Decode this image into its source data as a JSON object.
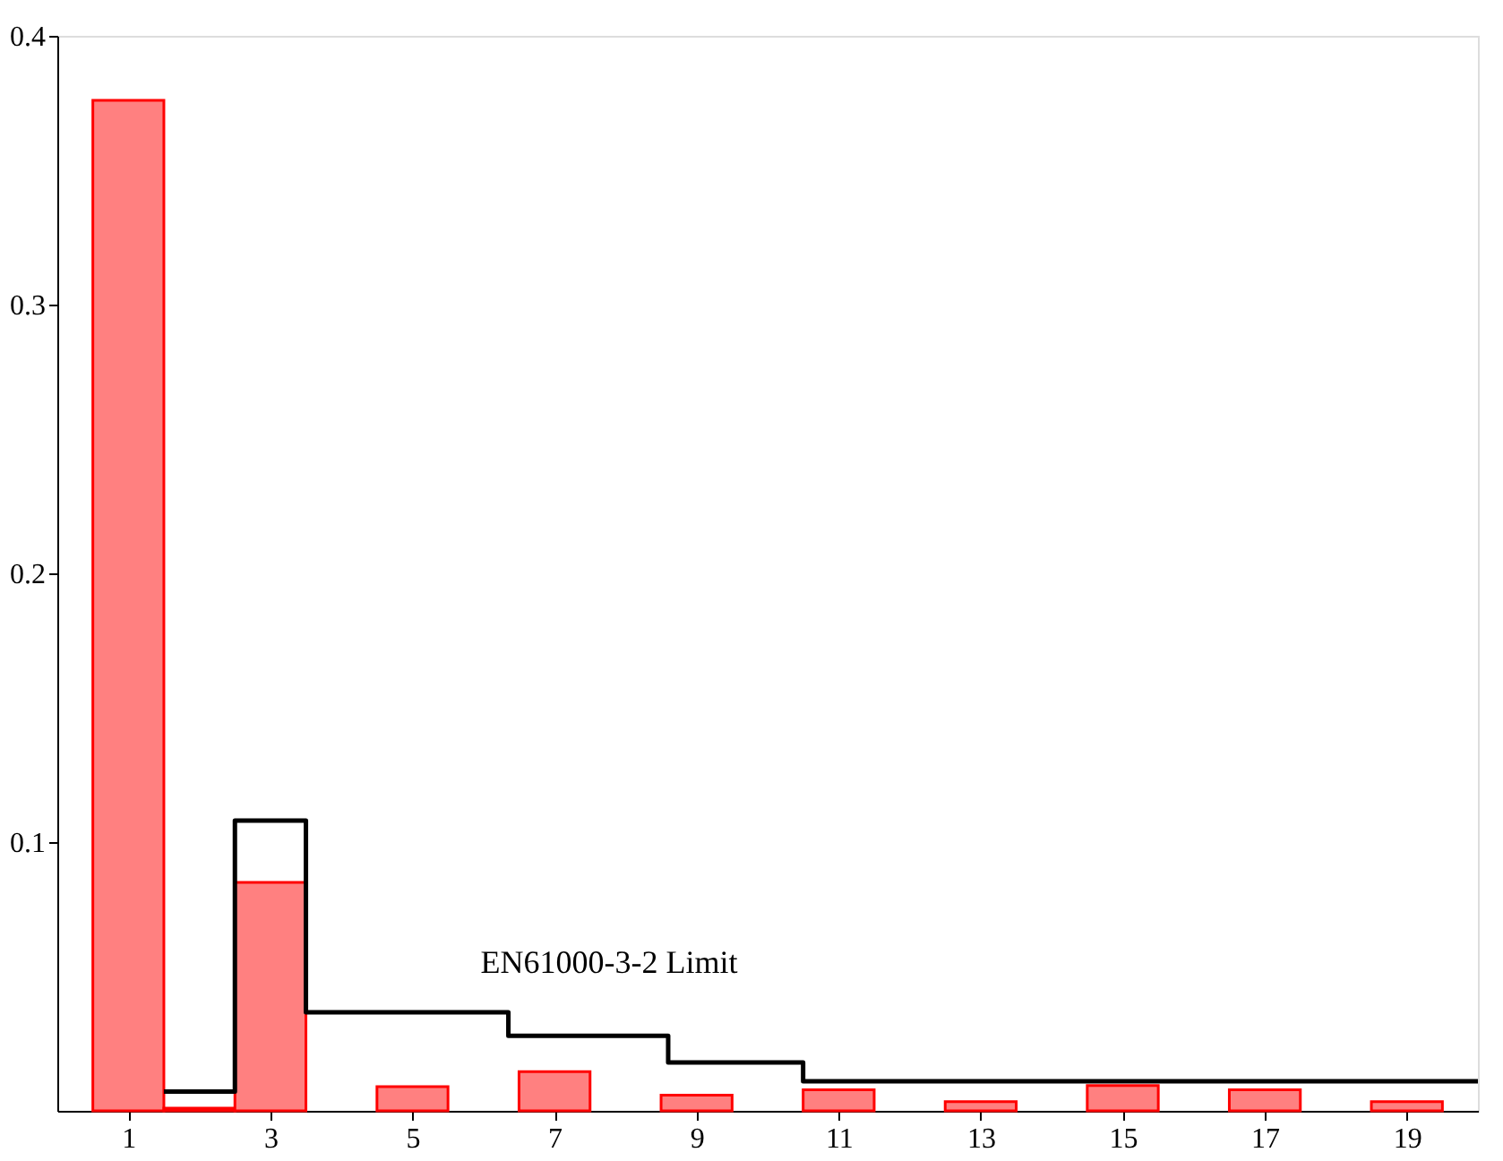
{
  "chart_data": {
    "type": "bar",
    "x": [
      1,
      2,
      3,
      4,
      5,
      6,
      7,
      8,
      9,
      10,
      11,
      12,
      13,
      14,
      15,
      16,
      17,
      18,
      19
    ],
    "series": [
      {
        "color": "#ff8080",
        "values": [
          0.376,
          0.001,
          0.085,
          null,
          0.009,
          null,
          0.0146,
          null,
          0.0058,
          null,
          0.0078,
          null,
          0.0034,
          null,
          0.0094,
          null,
          0.0078,
          null,
          0.0034
        ]
      },
      {
        "type": "step",
        "color": "#000000",
        "x": [
          1.5,
          2.5,
          3.5,
          6.35,
          8.6,
          10.5,
          20
        ],
        "values": [
          0.0072,
          0.108,
          0.0367,
          0.0279,
          0.018,
          0.011,
          0.011
        ]
      }
    ],
    "xlim": [
      0,
      20
    ],
    "xticks": [
      1,
      3,
      5,
      7,
      9,
      11,
      13,
      15,
      17,
      19
    ],
    "ylim": [
      0,
      0.4
    ],
    "yticks": [
      0.1,
      0.2,
      0.3,
      0.4
    ],
    "annotations": [
      "EN61000-3-2 Limit"
    ],
    "grid": false
  }
}
